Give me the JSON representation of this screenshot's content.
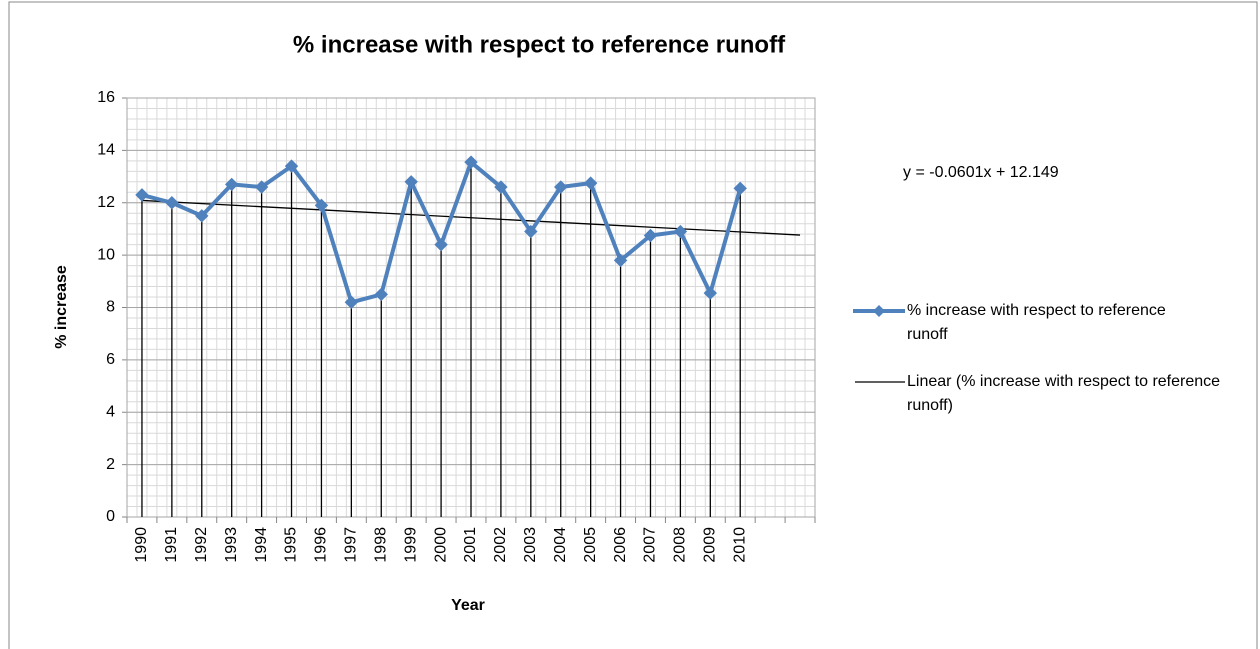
{
  "chart_data": {
    "type": "line",
    "title": "% increase with respect to reference runoff",
    "x_label": "Year",
    "y_label": "% increase",
    "categories": [
      "1990",
      "1991",
      "1992",
      "1993",
      "1994",
      "1995",
      "1996",
      "1997",
      "1998",
      "1999",
      "2000",
      "2001",
      "2002",
      "2003",
      "2004",
      "2005",
      "2006",
      "2007",
      "2008",
      "2009",
      "2010",
      null,
      null
    ],
    "series": [
      {
        "name": "% increase with respect to reference runoff",
        "color": "#4f81bd",
        "values": [
          12.3,
          12.0,
          11.5,
          12.7,
          12.6,
          13.4,
          11.9,
          8.2,
          8.5,
          12.8,
          10.4,
          13.55,
          12.6,
          10.9,
          12.6,
          12.75,
          9.8,
          10.75,
          10.9,
          8.55,
          12.55,
          null,
          null
        ]
      }
    ],
    "trendline": {
      "name": "Linear (% increase with respect to reference runoff)",
      "color": "#000000",
      "slope": -0.0601,
      "intercept": 12.149,
      "equation": "y = -0.0601x + 12.149"
    },
    "ylim": [
      0,
      16
    ],
    "yticks": [
      0,
      2,
      4,
      6,
      8,
      10,
      12,
      14,
      16
    ],
    "grid": true,
    "minor_grid": true,
    "drop_lines": true,
    "legend": "right"
  }
}
